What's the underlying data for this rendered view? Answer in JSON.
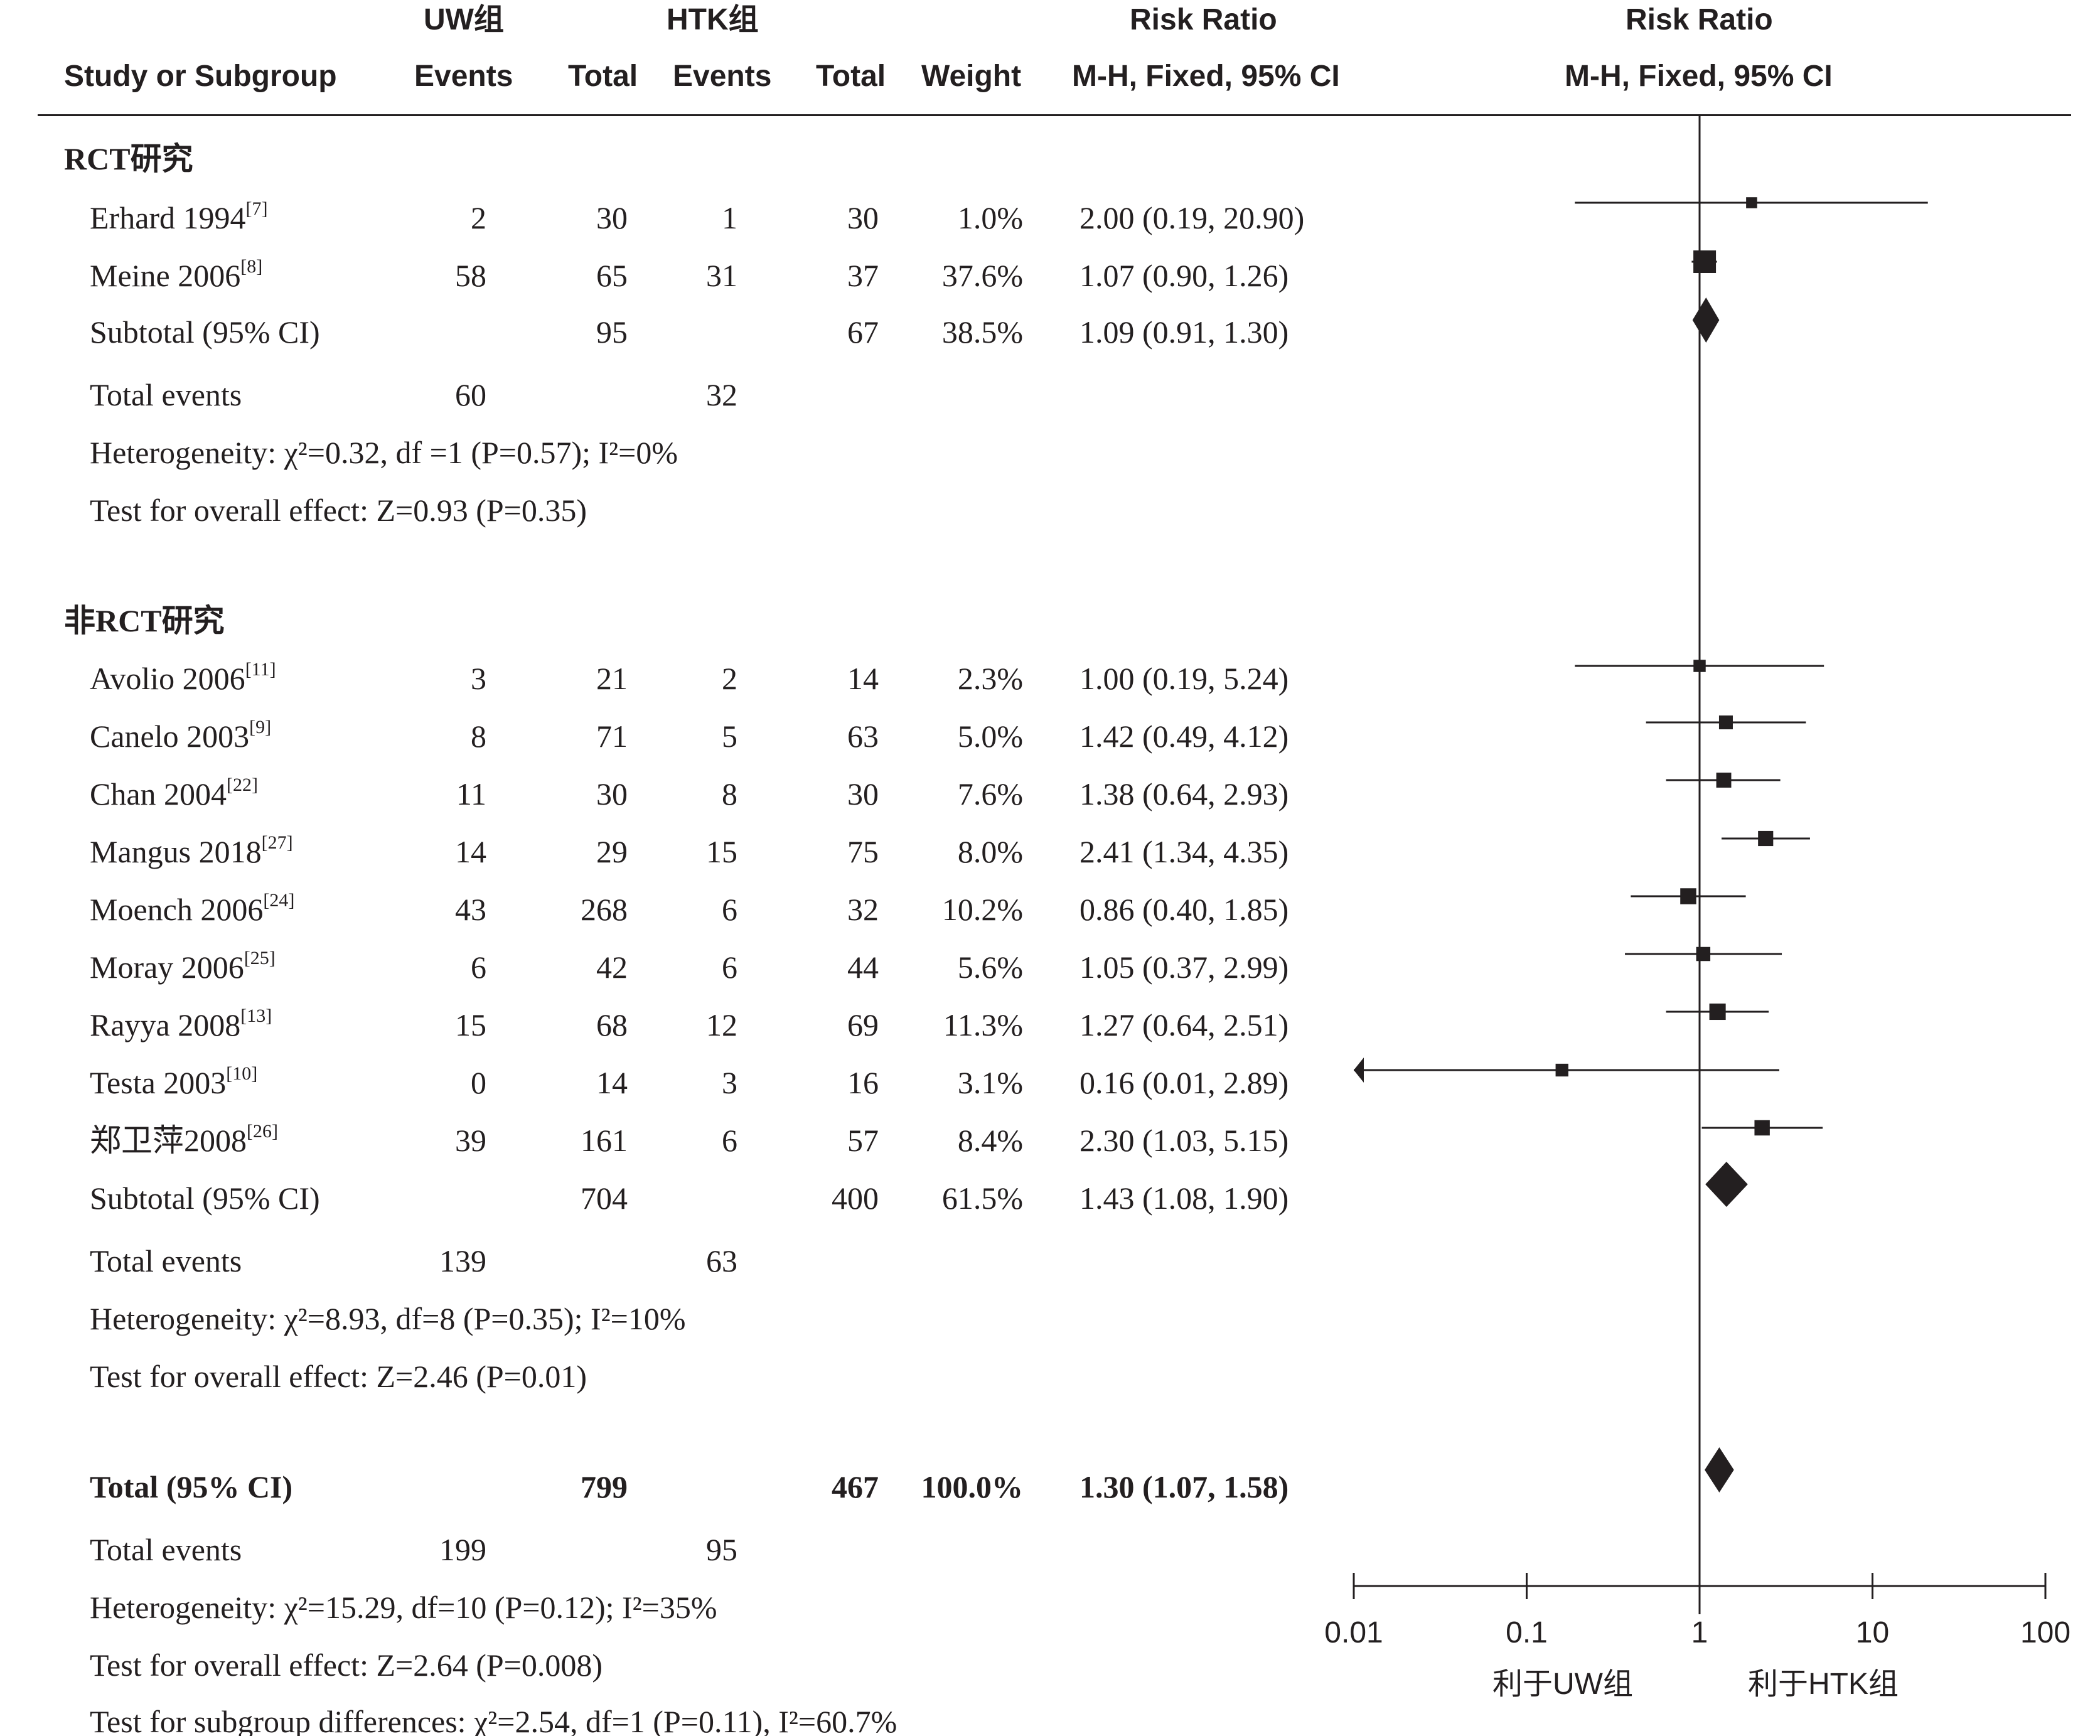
{
  "headers": {
    "group1_title": "UW组",
    "group2_title": "HTK组",
    "rr_title1": "Risk Ratio",
    "rr_title2": "Risk Ratio",
    "study": "Study or Subgroup",
    "events1": "Events",
    "total1": "Total",
    "events2": "Events",
    "total2": "Total",
    "weight": "Weight",
    "method1": "M-H, Fixed, 95% CI",
    "method2": "M-H, Fixed, 95% CI"
  },
  "rct": {
    "title": "RCT研究",
    "subtotal_label": "Subtotal (95% CI)",
    "subtotal_total1": "95",
    "subtotal_total2": "67",
    "subtotal_weight": "38.5%",
    "subtotal_ci": "1.09 (0.91, 1.30)",
    "total_events_label": "Total events",
    "total_events1": "60",
    "total_events2": "32",
    "heterogeneity": "Heterogeneity: χ²=0.32, df =1 (P=0.57); I²=0%",
    "overall_effect": "Test for overall effect: Z=0.93 (P=0.35)"
  },
  "nonrct": {
    "title": "非RCT研究",
    "subtotal_label": "Subtotal (95% CI)",
    "subtotal_total1": "704",
    "subtotal_total2": "400",
    "subtotal_weight": "61.5%",
    "subtotal_ci": "1.43 (1.08, 1.90)",
    "total_events_label": "Total events",
    "total_events1": "139",
    "total_events2": "63",
    "heterogeneity": "Heterogeneity: χ²=8.93, df=8 (P=0.35); I²=10%",
    "overall_effect": "Test for overall effect: Z=2.46 (P=0.01)"
  },
  "overall": {
    "label": "Total (95% CI)",
    "total1": "799",
    "total2": "467",
    "weight": "100.0%",
    "ci": "1.30 (1.07, 1.58)",
    "total_events_label": "Total events",
    "total_events1": "199",
    "total_events2": "95",
    "heterogeneity": "Heterogeneity: χ²=15.29, df=10 (P=0.12); I²=35%",
    "overall_effect": "Test for overall effect: Z=2.64 (P=0.008)",
    "subgroup_diff": "Test for subgroup differences: χ²=2.54, df=1 (P=0.11), I²=60.7%"
  },
  "axis": {
    "ticks": [
      "0.01",
      "0.1",
      "1",
      "10",
      "100"
    ],
    "favours_left": "利于UW组",
    "favours_right": "利于HTK组"
  },
  "chart_data": {
    "type": "forest",
    "scale": "log",
    "xlim": [
      0.01,
      100
    ],
    "reference_line": 1,
    "studies": [
      {
        "name": "Erhard 1994",
        "ref": "[7]",
        "group": "RCT研究",
        "events1": 2,
        "total1": 30,
        "events2": 1,
        "total2": 30,
        "weight": "1.0%",
        "rr": 2.0,
        "lo": 0.19,
        "hi": 20.9,
        "ci": "2.00 (0.19, 20.90)"
      },
      {
        "name": "Meine 2006",
        "ref": "[8]",
        "group": "RCT研究",
        "events1": 58,
        "total1": 65,
        "events2": 31,
        "total2": 37,
        "weight": "37.6%",
        "rr": 1.07,
        "lo": 0.9,
        "hi": 1.26,
        "ci": "1.07 (0.90, 1.26)"
      },
      {
        "name": "Avolio 2006",
        "ref": "[11]",
        "group": "非RCT研究",
        "events1": 3,
        "total1": 21,
        "events2": 2,
        "total2": 14,
        "weight": "2.3%",
        "rr": 1.0,
        "lo": 0.19,
        "hi": 5.24,
        "ci": "1.00 (0.19, 5.24)"
      },
      {
        "name": "Canelo 2003",
        "ref": "[9]",
        "group": "非RCT研究",
        "events1": 8,
        "total1": 71,
        "events2": 5,
        "total2": 63,
        "weight": "5.0%",
        "rr": 1.42,
        "lo": 0.49,
        "hi": 4.12,
        "ci": "1.42 (0.49, 4.12)"
      },
      {
        "name": "Chan 2004",
        "ref": "[22]",
        "group": "非RCT研究",
        "events1": 11,
        "total1": 30,
        "events2": 8,
        "total2": 30,
        "weight": "7.6%",
        "rr": 1.38,
        "lo": 0.64,
        "hi": 2.93,
        "ci": "1.38 (0.64, 2.93)"
      },
      {
        "name": "Mangus 2018",
        "ref": "[27]",
        "group": "非RCT研究",
        "events1": 14,
        "total1": 29,
        "events2": 15,
        "total2": 75,
        "weight": "8.0%",
        "rr": 2.41,
        "lo": 1.34,
        "hi": 4.35,
        "ci": "2.41 (1.34, 4.35)"
      },
      {
        "name": "Moench 2006",
        "ref": "[24]",
        "group": "非RCT研究",
        "events1": 43,
        "total1": 268,
        "events2": 6,
        "total2": 32,
        "weight": "10.2%",
        "rr": 0.86,
        "lo": 0.4,
        "hi": 1.85,
        "ci": "0.86 (0.40, 1.85)"
      },
      {
        "name": "Moray 2006",
        "ref": "[25]",
        "group": "非RCT研究",
        "events1": 6,
        "total1": 42,
        "events2": 6,
        "total2": 44,
        "weight": "5.6%",
        "rr": 1.05,
        "lo": 0.37,
        "hi": 2.99,
        "ci": "1.05 (0.37, 2.99)"
      },
      {
        "name": "Rayya 2008",
        "ref": "[13]",
        "group": "非RCT研究",
        "events1": 15,
        "total1": 68,
        "events2": 12,
        "total2": 69,
        "weight": "11.3%",
        "rr": 1.27,
        "lo": 0.64,
        "hi": 2.51,
        "ci": "1.27 (0.64, 2.51)"
      },
      {
        "name": "Testa 2003",
        "ref": "[10]",
        "group": "非RCT研究",
        "events1": 0,
        "total1": 14,
        "events2": 3,
        "total2": 16,
        "weight": "3.1%",
        "rr": 0.16,
        "lo": 0.01,
        "hi": 2.89,
        "ci": "0.16 (0.01, 2.89)"
      },
      {
        "name": "郑卫萍2008",
        "ref": "[26]",
        "group": "非RCT研究",
        "events1": 39,
        "total1": 161,
        "events2": 6,
        "total2": 57,
        "weight": "8.4%",
        "rr": 2.3,
        "lo": 1.03,
        "hi": 5.15,
        "ci": "2.30 (1.03, 5.15)"
      }
    ],
    "diamonds": [
      {
        "label": "Subtotal (95% CI)",
        "group": "RCT研究",
        "rr": 1.09,
        "lo": 0.91,
        "hi": 1.3
      },
      {
        "label": "Subtotal (95% CI)",
        "group": "非RCT研究",
        "rr": 1.43,
        "lo": 1.08,
        "hi": 1.9
      },
      {
        "label": "Total (95% CI)",
        "group": "overall",
        "rr": 1.3,
        "lo": 1.07,
        "hi": 1.58
      }
    ]
  }
}
